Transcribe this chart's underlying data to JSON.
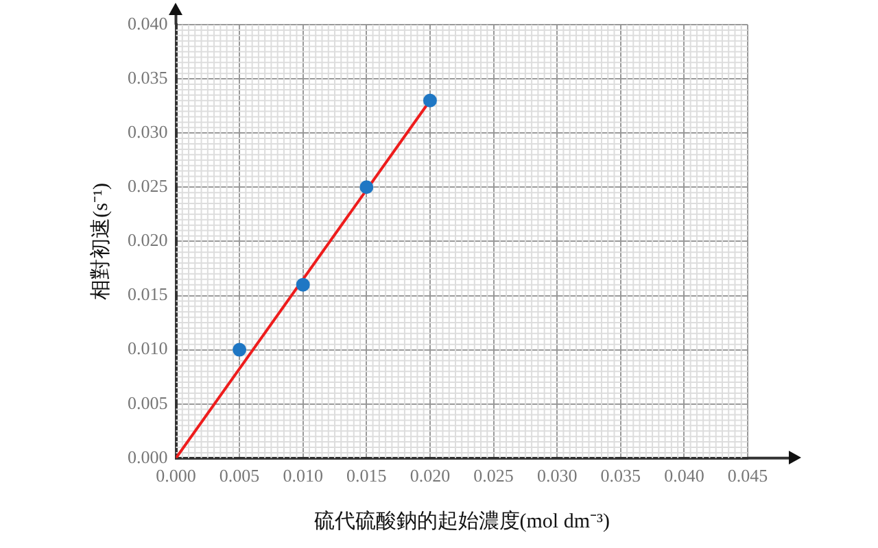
{
  "chart_data": {
    "type": "scatter",
    "xlabel": "硫代硫酸鈉的起始濃度(mol dm⁻³)",
    "ylabel": "相對初速(s⁻¹)",
    "series": [
      {
        "color": "#1f77c4",
        "marker": "circle",
        "x": [
          0.005,
          0.01,
          0.015,
          0.02
        ],
        "values": [
          0.01,
          0.016,
          0.025,
          0.033
        ]
      },
      {
        "type": "line",
        "color": "#ee1c1c",
        "x": [
          0,
          0.02
        ],
        "values": [
          0,
          0.033
        ]
      }
    ],
    "xlim": [
      0,
      0.045
    ],
    "ylim": [
      0,
      0.04
    ],
    "xticks": [
      {
        "value": 0,
        "label": "0.000"
      },
      0.005,
      {
        "value": 0.01,
        "label": "0.010"
      },
      0.015,
      {
        "value": 0.02,
        "label": "0.020"
      },
      0.025,
      {
        "value": 0.03,
        "label": "0.030"
      },
      0.035,
      {
        "value": 0.04,
        "label": "0.040"
      },
      0.045
    ],
    "yticks": [
      {
        "value": 0,
        "label": "0.000"
      },
      0.005,
      {
        "value": 0.01,
        "label": "0.010"
      },
      0.015,
      {
        "value": 0.02,
        "label": "0.020"
      },
      0.025,
      {
        "value": 0.03,
        "label": "0.030"
      },
      0.035,
      {
        "value": 0.04,
        "label": "0.040"
      }
    ],
    "grid": true,
    "legend": false,
    "line_style": "solid"
  }
}
